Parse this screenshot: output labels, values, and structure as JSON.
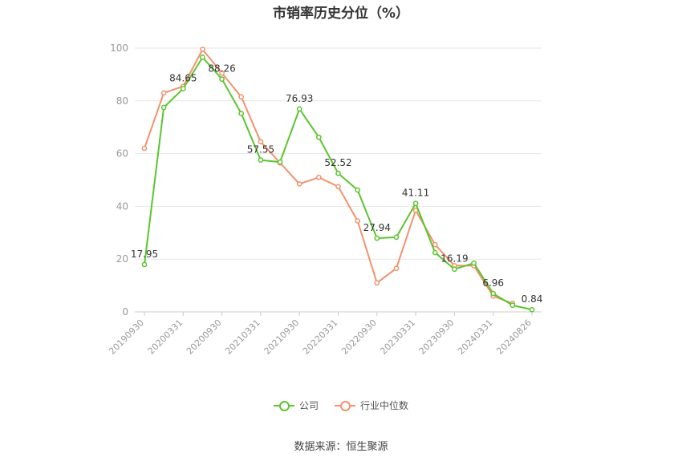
{
  "source_note": "数据来源：恒生聚源",
  "colors": {
    "company": "#5cc52f",
    "industry": "#f4916c",
    "grid": "#e6e6e6",
    "axis": "#cccccc",
    "tick": "#999999"
  },
  "chart_data": {
    "type": "line",
    "title": "市销率历史分位（%）",
    "ylim": [
      0,
      100
    ],
    "yticks": [
      0,
      20,
      40,
      60,
      80,
      100
    ],
    "grid": true,
    "legend_position": "bottom",
    "x": [
      "20190930",
      "20191231",
      "20200331",
      "20200630",
      "20200930",
      "20201231",
      "20210331",
      "20210630",
      "20210930",
      "20211231",
      "20220331",
      "20220630",
      "20220930",
      "20221231",
      "20230331",
      "20230630",
      "20230930",
      "20231231",
      "20240331",
      "20240630",
      "20240826"
    ],
    "xtick_labels": [
      "20190930",
      "20200331",
      "20200930",
      "20210331",
      "20210930",
      "20220331",
      "20220930",
      "20230331",
      "20230930",
      "20240331",
      "20240826"
    ],
    "series": [
      {
        "name": "公司",
        "color": "#5cc52f",
        "values": [
          17.95,
          77.5,
          84.65,
          96.5,
          88.26,
          75.2,
          57.55,
          56.8,
          76.93,
          66.2,
          52.52,
          46.2,
          27.94,
          28.3,
          41.11,
          22.5,
          16.19,
          18.5,
          6.96,
          2.5,
          0.84
        ],
        "labels": {
          "0": "17.95",
          "2": "84.65",
          "4": "88.26",
          "6": "57.55",
          "8": "76.93",
          "10": "52.52",
          "12": "27.94",
          "14": "41.11",
          "16": "16.19",
          "18": "6.96",
          "20": "0.84"
        }
      },
      {
        "name": "行业中位数",
        "color": "#f4916c",
        "values": [
          62,
          83,
          85.5,
          99.5,
          90.5,
          81.5,
          64.5,
          56.5,
          48.5,
          51,
          47.5,
          34.5,
          11,
          16.5,
          38.5,
          25.5,
          17.5,
          17.5,
          6,
          3.2,
          null
        ]
      }
    ]
  }
}
